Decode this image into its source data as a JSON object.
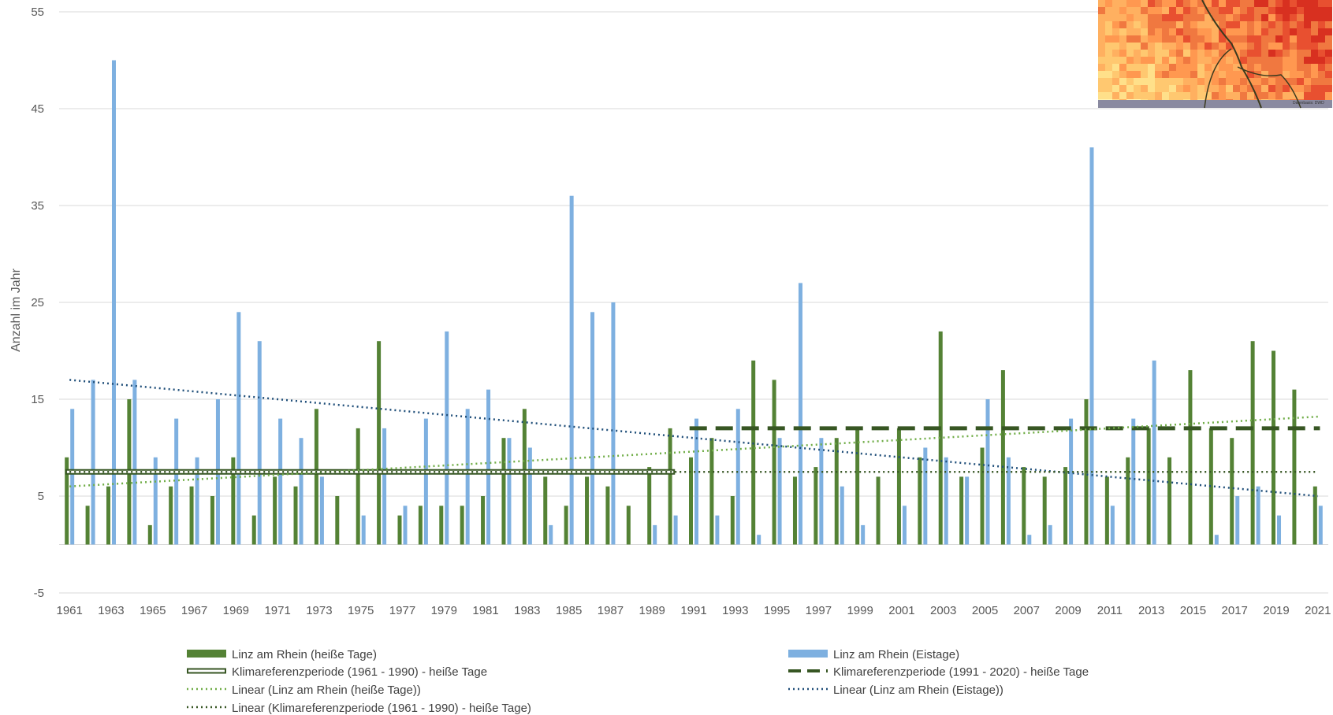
{
  "chart_data": {
    "type": "bar",
    "ylabel": "Anzahl  im Jahr",
    "ylim": [
      -5,
      55
    ],
    "yticks": [
      -5,
      5,
      15,
      25,
      35,
      45,
      55
    ],
    "categories": [
      "1961",
      "1962",
      "1963",
      "1964",
      "1965",
      "1966",
      "1967",
      "1968",
      "1969",
      "1970",
      "1971",
      "1972",
      "1973",
      "1974",
      "1975",
      "1976",
      "1977",
      "1978",
      "1979",
      "1980",
      "1981",
      "1982",
      "1983",
      "1984",
      "1985",
      "1986",
      "1987",
      "1988",
      "1989",
      "1990",
      "1991",
      "1992",
      "1993",
      "1994",
      "1995",
      "1996",
      "1997",
      "1998",
      "1999",
      "2000",
      "2001",
      "2002",
      "2003",
      "2004",
      "2005",
      "2006",
      "2007",
      "2008",
      "2009",
      "2010",
      "2011",
      "2012",
      "2013",
      "2014",
      "2015",
      "2016",
      "2017",
      "2018",
      "2019",
      "2020",
      "2021"
    ],
    "tick_labels": [
      "1961",
      "1963",
      "1965",
      "1967",
      "1969",
      "1971",
      "1973",
      "1975",
      "1977",
      "1979",
      "1981",
      "1983",
      "1985",
      "1987",
      "1989",
      "1991",
      "1993",
      "1995",
      "1997",
      "1999",
      "2001",
      "2003",
      "2005",
      "2007",
      "2009",
      "2011",
      "2013",
      "2015",
      "2017",
      "2019",
      "2021"
    ],
    "series": [
      {
        "name": "Linz am Rhein (heiße Tage)",
        "color": "#548235",
        "values": [
          9,
          4,
          6,
          15,
          2,
          6,
          6,
          5,
          9,
          3,
          7,
          6,
          14,
          5,
          12,
          21,
          3,
          4,
          4,
          4,
          5,
          11,
          14,
          7,
          4,
          7,
          6,
          4,
          8,
          12,
          9,
          11,
          5,
          19,
          17,
          7,
          8,
          11,
          12,
          7,
          12,
          9,
          22,
          7,
          10,
          18,
          8,
          7,
          8,
          15,
          7,
          9,
          12,
          9,
          18,
          12,
          11,
          21,
          20,
          16,
          6
        ]
      },
      {
        "name": "Linz am Rhein (Eistage)",
        "color": "#7EB0E0",
        "values": [
          14,
          17,
          50,
          17,
          9,
          13,
          9,
          15,
          24,
          21,
          13,
          11,
          7,
          0,
          3,
          12,
          4,
          13,
          22,
          14,
          16,
          11,
          10,
          2,
          36,
          24,
          25,
          0,
          2,
          3,
          13,
          3,
          14,
          1,
          11,
          27,
          11,
          6,
          2,
          0,
          4,
          10,
          9,
          7,
          15,
          9,
          1,
          2,
          13,
          41,
          4,
          13,
          19,
          0,
          0,
          1,
          5,
          6,
          3,
          0,
          4
        ]
      }
    ],
    "reference_lines": [
      {
        "name": "Klimareferenzperiode (1961 - 1990) - heiße Tage",
        "value": 7.5,
        "from": "1961",
        "to": "1990",
        "color": "#375623",
        "style": "double"
      },
      {
        "name": "Klimareferenzperiode (1991 - 2020) - heiße Tage",
        "value": 12,
        "from": "1991",
        "to": "2021",
        "color": "#375623",
        "style": "dashed"
      },
      {
        "name": "Linear (Linz am Rhein (heiße Tage))",
        "from_value": 6,
        "to_value": 13.2,
        "color": "#70AD47",
        "style": "dotted"
      },
      {
        "name": "Linear (Linz am Rhein (Eistage))",
        "from_value": 17,
        "to_value": 5,
        "color": "#1F4E79",
        "style": "dotted"
      },
      {
        "name": "Linear (Klimareferenzperiode (1961 - 1990) - heiße Tage)",
        "from_value": 7.5,
        "to_value": 7.5,
        "color": "#375623",
        "style": "dotted"
      }
    ],
    "legend_position": "bottom",
    "grid": true
  },
  "inset": {
    "credit": "Datenbasis: DWD"
  }
}
